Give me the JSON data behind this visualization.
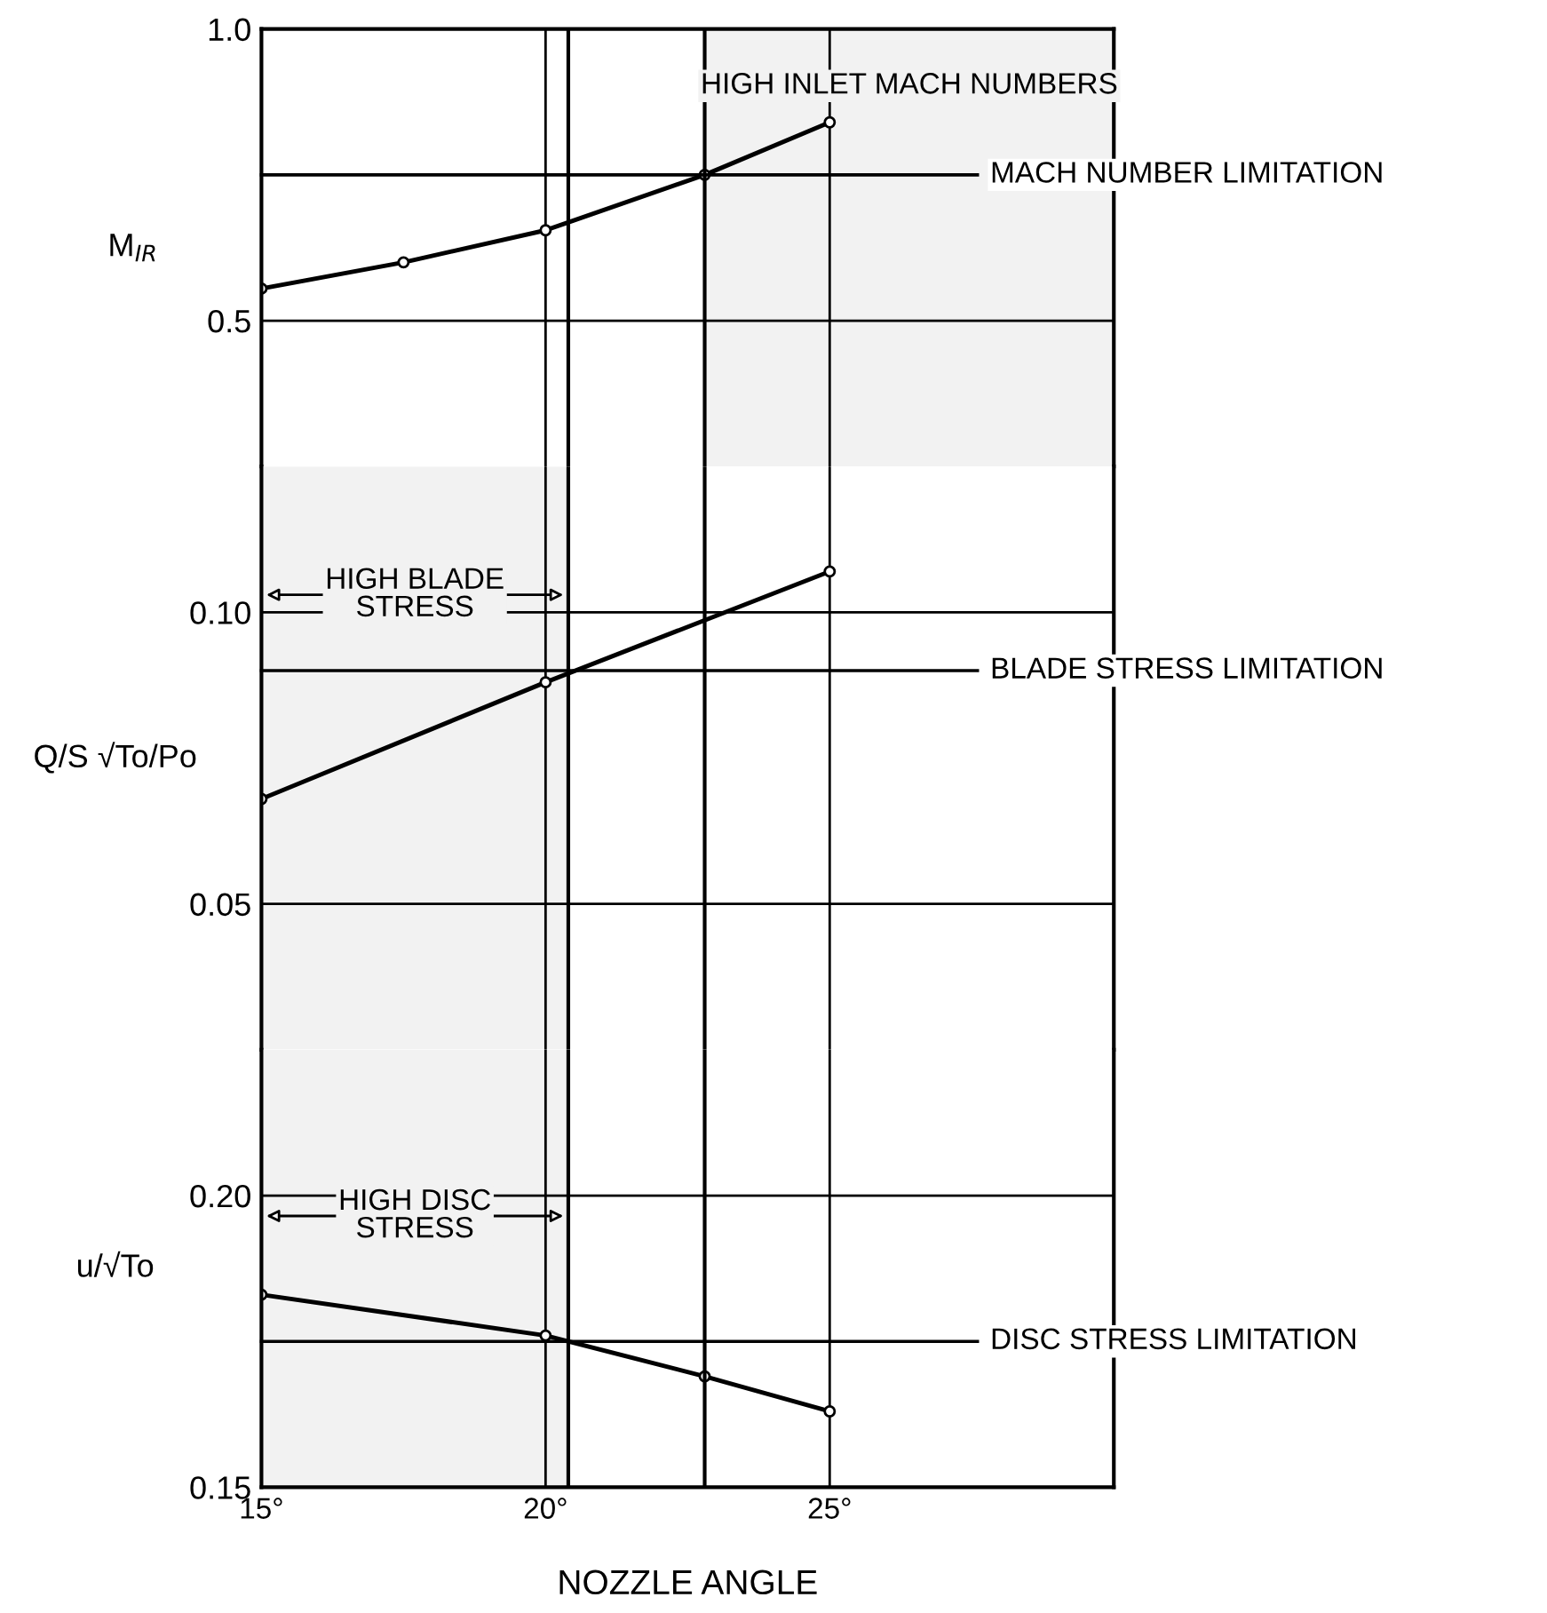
{
  "chart_data": [
    {
      "type": "line",
      "ylabel": "M$_{IR}$",
      "x": [
        15,
        17.5,
        20,
        22.8,
        25
      ],
      "series": [
        {
          "color": "#000000",
          "values": [
            0.555,
            0.6,
            0.655,
            0.75,
            0.84
          ]
        }
      ],
      "xlim": [
        15,
        30
      ],
      "xticks": [
        {
          "value": 15,
          "label": null
        },
        {
          "value": 20,
          "label": null
        },
        {
          "value": 25,
          "label": null
        }
      ],
      "ylim": [
        0.25,
        1.0
      ],
      "yticks": [
        {
          "value": 1.0,
          "label": "1.0"
        },
        {
          "value": 0.5,
          "label": "0.5"
        }
      ],
      "tick_labels": "y",
      "grid": true,
      "marker": "circle",
      "line_style": "solid",
      "ref_lines": [
        {
          "axis": "y",
          "value": 0.75,
          "label": "MACH NUMBER LIMITATION"
        },
        {
          "axis": "x",
          "value": 20.4
        },
        {
          "axis": "x",
          "value": 22.8
        }
      ],
      "bands": [
        {
          "axis": "x",
          "from": 22.8,
          "to": 30,
          "label": "HIGH INLET MACH NUMBERS",
          "color": "#f2f2f2"
        }
      ]
    },
    {
      "type": "line",
      "ylabel": "Q/S √To/Po",
      "x": [
        15,
        20,
        25
      ],
      "series": [
        {
          "color": "#000000",
          "values": [
            0.068,
            0.088,
            0.107
          ]
        }
      ],
      "xlim": [
        15,
        30
      ],
      "xticks": [
        {
          "value": 15,
          "label": null
        },
        {
          "value": 20,
          "label": null
        },
        {
          "value": 25,
          "label": null
        }
      ],
      "ylim": [
        0.025,
        0.125
      ],
      "yticks": [
        {
          "value": 0.1,
          "label": "0.10"
        },
        {
          "value": 0.05,
          "label": "0.05"
        }
      ],
      "tick_labels": "y",
      "grid": true,
      "marker": "circle",
      "line_style": "solid",
      "ref_lines": [
        {
          "axis": "y",
          "value": 0.09,
          "label": "BLADE STRESS LIMITATION"
        },
        {
          "axis": "x",
          "value": 20.4
        },
        {
          "axis": "x",
          "value": 22.8
        }
      ],
      "bands": [
        {
          "axis": "x",
          "from": 15,
          "to": 20.4,
          "label": "HIGH BLADE\nSTRESS",
          "color": "#f2f2f2"
        }
      ]
    },
    {
      "type": "line",
      "ylabel": "u/√To",
      "xlabel": "NOZZLE ANGLE",
      "x": [
        15,
        20,
        22.8,
        25
      ],
      "series": [
        {
          "color": "#000000",
          "values": [
            0.183,
            0.176,
            0.169,
            0.163
          ]
        }
      ],
      "xlim": [
        15,
        30
      ],
      "xticks": [
        {
          "value": 15,
          "label": "15°"
        },
        {
          "value": 20,
          "label": "20°"
        },
        {
          "value": 25,
          "label": "25°"
        }
      ],
      "ylim": [
        0.15,
        0.225
      ],
      "yticks": [
        {
          "value": 0.2,
          "label": "0.20"
        },
        {
          "value": 0.15,
          "label": "0.15"
        }
      ],
      "grid": true,
      "marker": "circle",
      "line_style": "solid",
      "ref_lines": [
        {
          "axis": "y",
          "value": 0.175,
          "label": "DISC STRESS LIMITATION"
        },
        {
          "axis": "x",
          "value": 20.4
        },
        {
          "axis": "x",
          "value": 22.8
        }
      ],
      "bands": [
        {
          "axis": "x",
          "from": 15,
          "to": 20.4,
          "label": "HIGH DISC\nSTRESS",
          "color": "#f2f2f2"
        }
      ]
    }
  ]
}
